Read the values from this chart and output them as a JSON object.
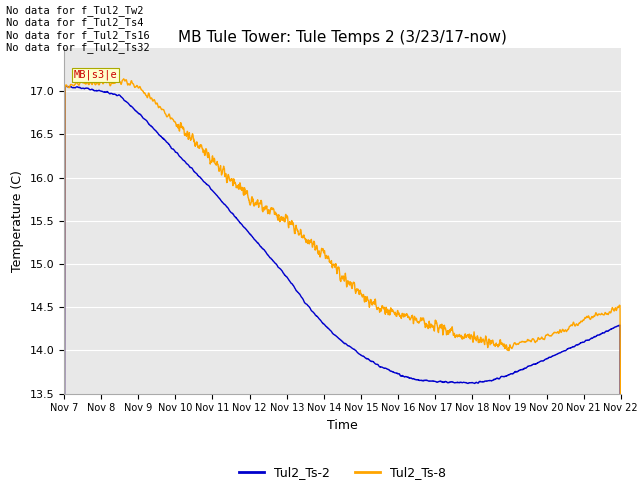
{
  "title": "MB Tule Tower: Tule Temps 2 (3/23/17-now)",
  "xlabel": "Time",
  "ylabel": "Temperature (C)",
  "bg_color": "#e8e8e8",
  "fig_bg_color": "#ffffff",
  "ylim": [
    13.5,
    17.5
  ],
  "yticks": [
    13.5,
    14.0,
    14.5,
    15.0,
    15.5,
    16.0,
    16.5,
    17.0
  ],
  "xtick_labels": [
    "Nov 7",
    "Nov 8",
    "Nov 9",
    "Nov 10",
    "Nov 11",
    "Nov 12",
    "Nov 13",
    "Nov 14",
    "Nov 15",
    "Nov 16",
    "Nov 17",
    "Nov 18",
    "Nov 19",
    "Nov 20",
    "Nov 21",
    "Nov 22"
  ],
  "no_data_lines": [
    "No data for f_Tul2_Tw2",
    "No data for f_Tul2_Ts4",
    "No data for f_Tul2_Ts16",
    "No data for f_Tul2_Ts32"
  ],
  "line_blue_color": "#0000cc",
  "line_orange_color": "#ffa500",
  "legend_labels": [
    "Tul2_Ts-2",
    "Tul2_Ts-8"
  ],
  "tooltip_text": "MB|s3|e",
  "tooltip_color": "#cc0000",
  "tooltip_bg": "#ffffcc"
}
